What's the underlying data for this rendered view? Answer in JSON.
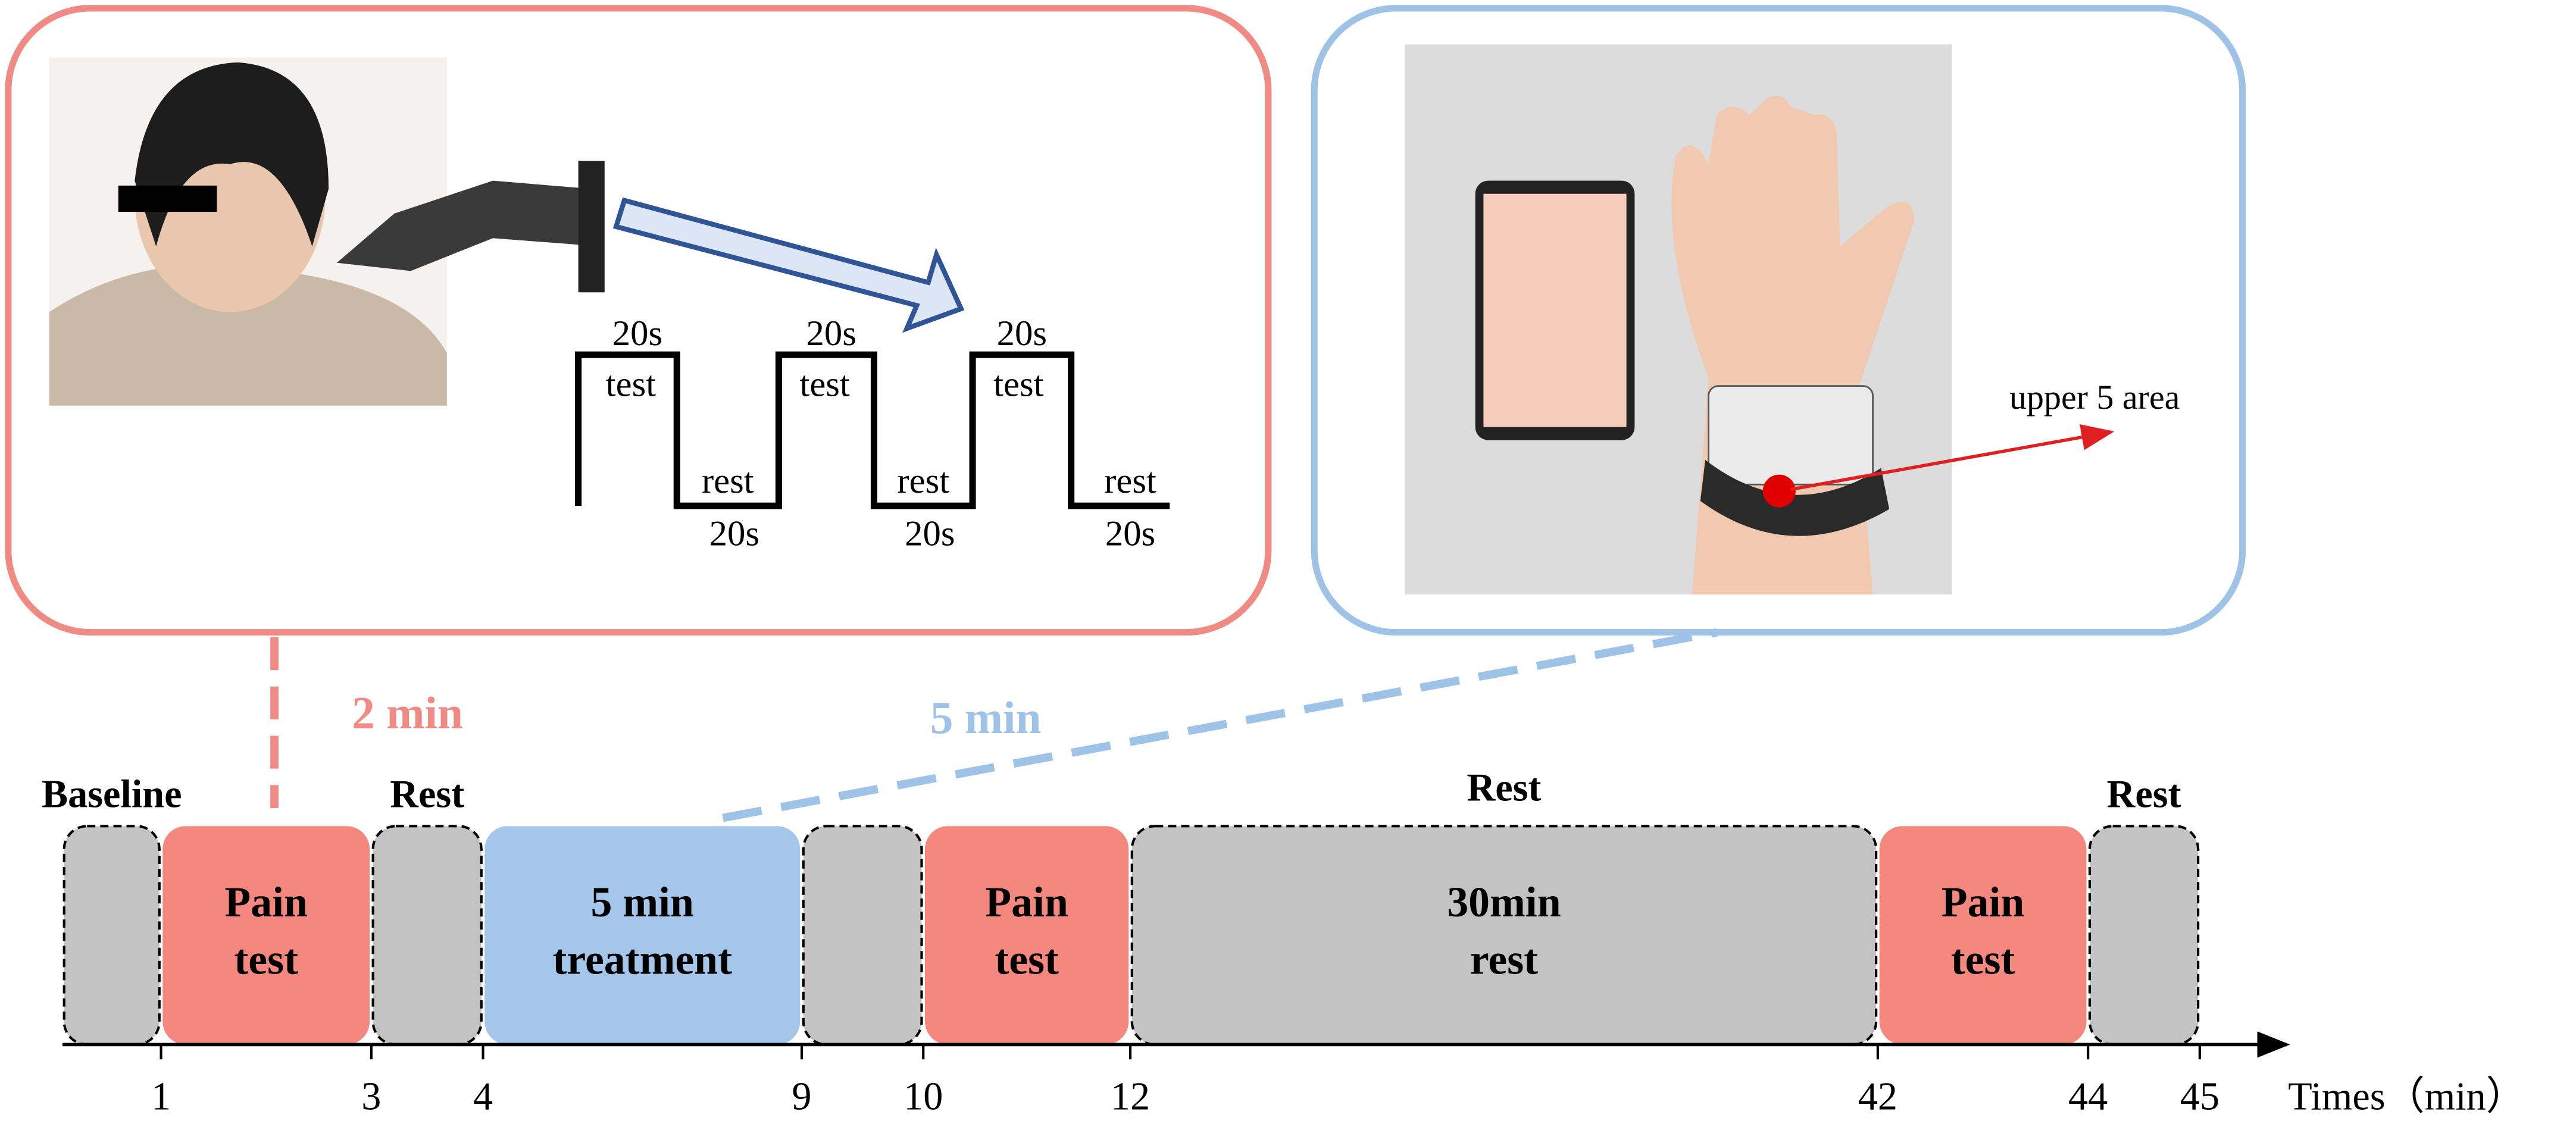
{
  "stimulus_protocol": {
    "pulses": [
      {
        "test_duration": "20s",
        "test_label": "test",
        "rest_label": "rest",
        "rest_duration": "20s"
      },
      {
        "test_duration": "20s",
        "test_label": "test",
        "rest_label": "rest",
        "rest_duration": "20s"
      },
      {
        "test_duration": "20s",
        "test_label": "test",
        "rest_label": "rest",
        "rest_duration": "20s"
      }
    ]
  },
  "wrist_annotation": "upper 5 area",
  "durations": {
    "pain_test": "2 min",
    "treatment": "5 min"
  },
  "timeline": {
    "start": 0,
    "blocks": [
      {
        "kind": "rest",
        "top_label": "Baseline",
        "lines": [],
        "end": 1
      },
      {
        "kind": "pain",
        "top_label": null,
        "lines": [
          "Pain",
          "test"
        ],
        "end": 3
      },
      {
        "kind": "rest",
        "top_label": "Rest",
        "lines": [],
        "end": 4
      },
      {
        "kind": "treatment",
        "top_label": null,
        "lines": [
          "5 min",
          "treatment"
        ],
        "end": 9
      },
      {
        "kind": "rest",
        "top_label": null,
        "lines": [],
        "end": 10
      },
      {
        "kind": "pain",
        "top_label": null,
        "lines": [
          "Pain",
          "test"
        ],
        "end": 12
      },
      {
        "kind": "rest",
        "top_label": "Rest",
        "lines": [
          "30min",
          "rest"
        ],
        "end": 42
      },
      {
        "kind": "pain",
        "top_label": null,
        "lines": [
          "Pain",
          "test"
        ],
        "end": 44
      },
      {
        "kind": "rest",
        "top_label": "Rest",
        "lines": [],
        "end": 45
      }
    ],
    "axis_label": "Times（min）"
  }
}
